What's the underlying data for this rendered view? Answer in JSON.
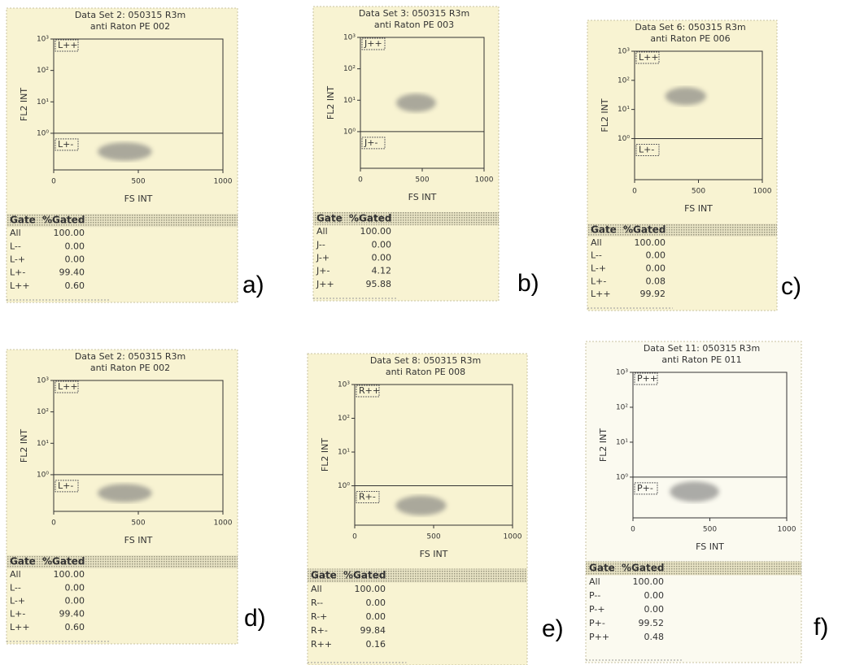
{
  "panels": [
    {
      "label": "a)",
      "title": [
        "Data Set 2: 050315 R3m",
        "anti Raton PE 002"
      ],
      "y_axis_label": "FL2 INT",
      "x_axis_label": "FS INT",
      "x_ticks": [
        "0",
        "500",
        "1000"
      ],
      "y_ticks": [
        "10⁰",
        "10¹",
        "10²",
        "10³"
      ],
      "gates": [
        "L++",
        "L+-"
      ],
      "table": {
        "header": [
          "Gate",
          "%Gated"
        ],
        "rows": [
          [
            "All",
            "100.00"
          ],
          [
            "L--",
            "0.00"
          ],
          [
            "L-+",
            "0.00"
          ],
          [
            "L+-",
            "99.40"
          ],
          [
            "L++",
            "0.60"
          ]
        ]
      }
    },
    {
      "label": "b)",
      "title": [
        "Data Set 3: 050315 R3m",
        "anti Raton PE 003"
      ],
      "y_axis_label": "FL2 INT",
      "x_axis_label": "FS INT",
      "x_ticks": [
        "0",
        "500",
        "1000"
      ],
      "y_ticks": [
        "10⁰",
        "10¹",
        "10²",
        "10³"
      ],
      "gates": [
        "J++",
        "J+-"
      ],
      "table": {
        "header": [
          "Gate",
          "%Gated"
        ],
        "rows": [
          [
            "All",
            "100.00"
          ],
          [
            "J--",
            "0.00"
          ],
          [
            "J-+",
            "0.00"
          ],
          [
            "J+-",
            "4.12"
          ],
          [
            "J++",
            "95.88"
          ]
        ]
      }
    },
    {
      "label": "c)",
      "title": [
        "Data Set 6: 050315 R3m",
        "anti Raton PE 006"
      ],
      "y_axis_label": "FL2 INT",
      "x_axis_label": "FS INT",
      "x_ticks": [
        "0",
        "500",
        "1000"
      ],
      "y_ticks": [
        "10⁰",
        "10¹",
        "10²",
        "10³"
      ],
      "gates": [
        "L++",
        "L+-"
      ],
      "table": {
        "header": [
          "Gate",
          "%Gated"
        ],
        "rows": [
          [
            "All",
            "100.00"
          ],
          [
            "L--",
            "0.00"
          ],
          [
            "L-+",
            "0.00"
          ],
          [
            "L+-",
            "0.08"
          ],
          [
            "L++",
            "99.92"
          ]
        ]
      }
    },
    {
      "label": "d)",
      "title": [
        "Data Set 2: 050315 R3m",
        "anti Raton PE 002"
      ],
      "y_axis_label": "FL2 INT",
      "x_axis_label": "FS INT",
      "x_ticks": [
        "0",
        "500",
        "1000"
      ],
      "y_ticks": [
        "10⁰",
        "10¹",
        "10²",
        "10³"
      ],
      "gates": [
        "L++",
        "L+-"
      ],
      "table": {
        "header": [
          "Gate",
          "%Gated"
        ],
        "rows": [
          [
            "All",
            "100.00"
          ],
          [
            "L--",
            "0.00"
          ],
          [
            "L-+",
            "0.00"
          ],
          [
            "L+-",
            "99.40"
          ],
          [
            "L++",
            "0.60"
          ]
        ]
      }
    },
    {
      "label": "e)",
      "title": [
        "Data Set 8: 050315 R3m",
        "anti Raton PE 008"
      ],
      "y_axis_label": "FL2 INT",
      "x_axis_label": "FS INT",
      "x_ticks": [
        "0",
        "500",
        "1000"
      ],
      "y_ticks": [
        "10⁰",
        "10¹",
        "10²",
        "10³"
      ],
      "gates": [
        "R++",
        "R+-"
      ],
      "table": {
        "header": [
          "Gate",
          "%Gated"
        ],
        "rows": [
          [
            "All",
            "100.00"
          ],
          [
            "R--",
            "0.00"
          ],
          [
            "R-+",
            "0.00"
          ],
          [
            "R+-",
            "99.84"
          ],
          [
            "R++",
            "0.16"
          ]
        ]
      }
    },
    {
      "label": "f)",
      "title": [
        "Data Set 11: 050315 R3m",
        "anti Raton PE 011"
      ],
      "y_axis_label": "FL2 INT",
      "x_axis_label": "FS INT",
      "x_ticks": [
        "0",
        "500",
        "1000"
      ],
      "y_ticks": [
        "10⁰",
        "10¹",
        "10²",
        "10³"
      ],
      "gates": [
        "P++",
        "P+-"
      ],
      "table": {
        "header": [
          "Gate",
          "%Gated"
        ],
        "rows": [
          [
            "All",
            "100.00"
          ],
          [
            "P--",
            "0.00"
          ],
          [
            "P-+",
            "0.00"
          ],
          [
            "P+-",
            "99.52"
          ],
          [
            "P++",
            "0.48"
          ]
        ]
      }
    }
  ]
}
